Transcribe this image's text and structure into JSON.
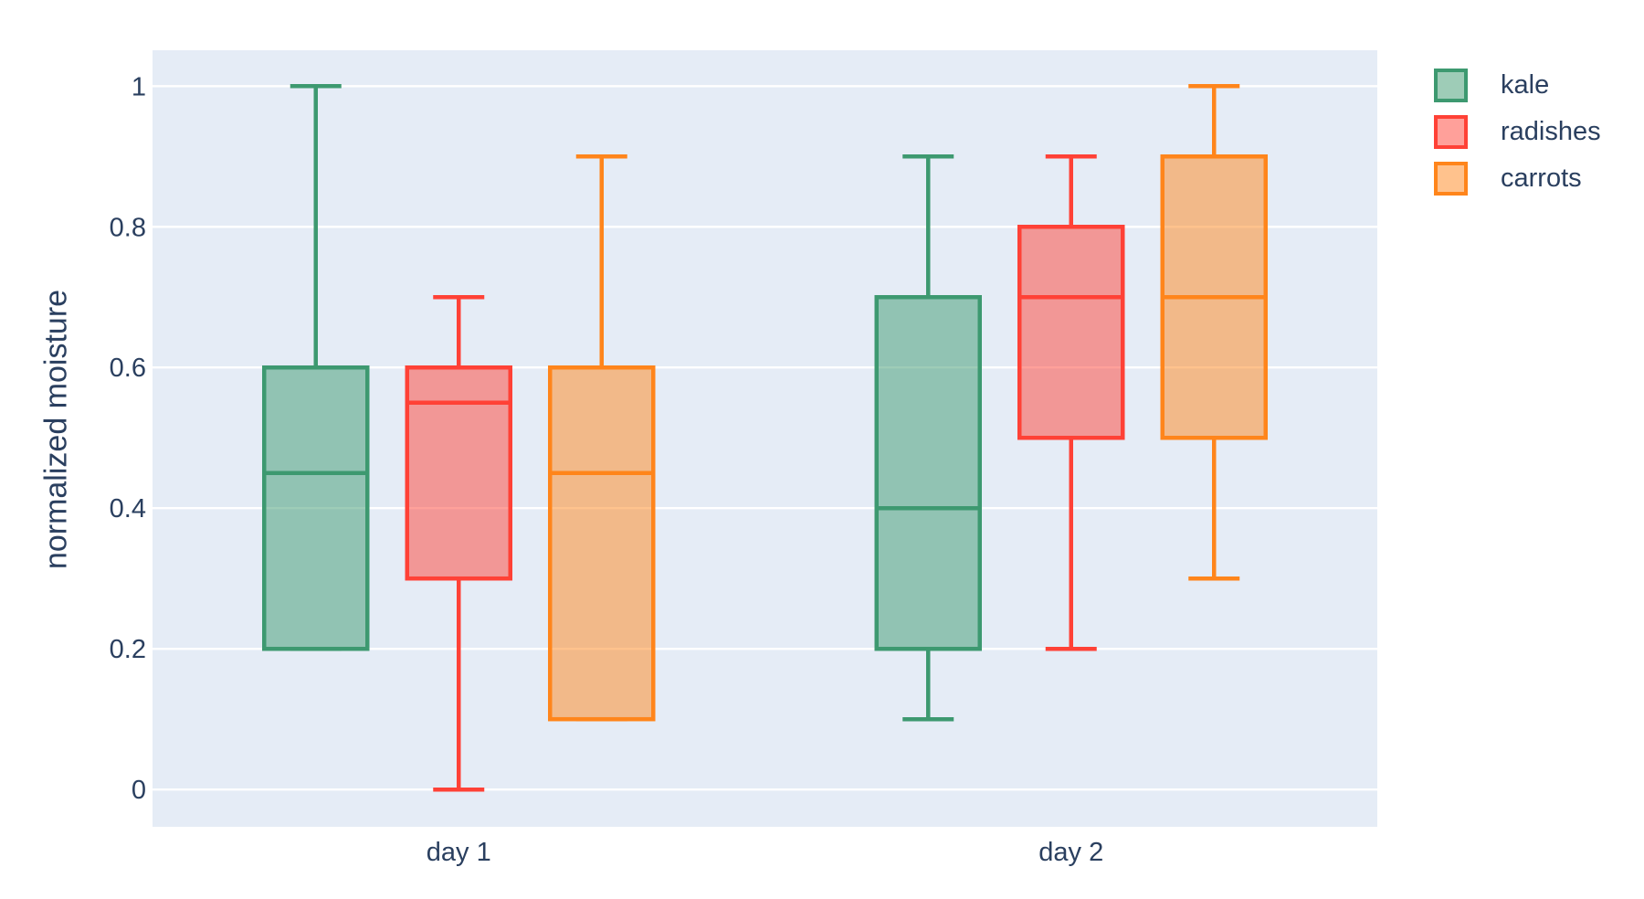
{
  "figure": {
    "background_color": "#ffffff",
    "plot_background_color": "#e5ecf6",
    "gridline_color": "#ffffff",
    "text_color": "#2a3f5f"
  },
  "chart_data": {
    "type": "box",
    "orientation": "vertical",
    "boxmode": "group",
    "title": "",
    "xlabel": "",
    "ylabel": "normalized moisture",
    "categories": [
      "day 1",
      "day 2"
    ],
    "ytick_labels": [
      "0",
      "0.2",
      "0.4",
      "0.6",
      "0.8",
      "1"
    ],
    "ytick_values": [
      0,
      0.2,
      0.4,
      0.6,
      0.8,
      1
    ],
    "ylim": [
      -0.053,
      1.051
    ],
    "grid": true,
    "legend": {
      "position": "top-right",
      "entries": [
        "kale",
        "radishes",
        "carrots"
      ]
    },
    "series": [
      {
        "name": "kale",
        "color": "#3D9970",
        "boxes": [
          {
            "category": "day 1",
            "whisker_low": 0.2,
            "q1": 0.2,
            "median": 0.45,
            "q3": 0.6,
            "whisker_high": 1.0
          },
          {
            "category": "day 2",
            "whisker_low": 0.1,
            "q1": 0.2,
            "median": 0.4,
            "q3": 0.7,
            "whisker_high": 0.9
          }
        ]
      },
      {
        "name": "radishes",
        "color": "#FF4136",
        "boxes": [
          {
            "category": "day 1",
            "whisker_low": 0.0,
            "q1": 0.3,
            "median": 0.55,
            "q3": 0.6,
            "whisker_high": 0.7
          },
          {
            "category": "day 2",
            "whisker_low": 0.2,
            "q1": 0.5,
            "median": 0.7,
            "q3": 0.8,
            "whisker_high": 0.9
          }
        ]
      },
      {
        "name": "carrots",
        "color": "#FF851B",
        "boxes": [
          {
            "category": "day 1",
            "whisker_low": 0.1,
            "q1": 0.1,
            "median": 0.45,
            "q3": 0.6,
            "whisker_high": 0.9
          },
          {
            "category": "day 2",
            "whisker_low": 0.3,
            "q1": 0.5,
            "median": 0.7,
            "q3": 0.9,
            "whisker_high": 1.0
          }
        ]
      }
    ]
  }
}
